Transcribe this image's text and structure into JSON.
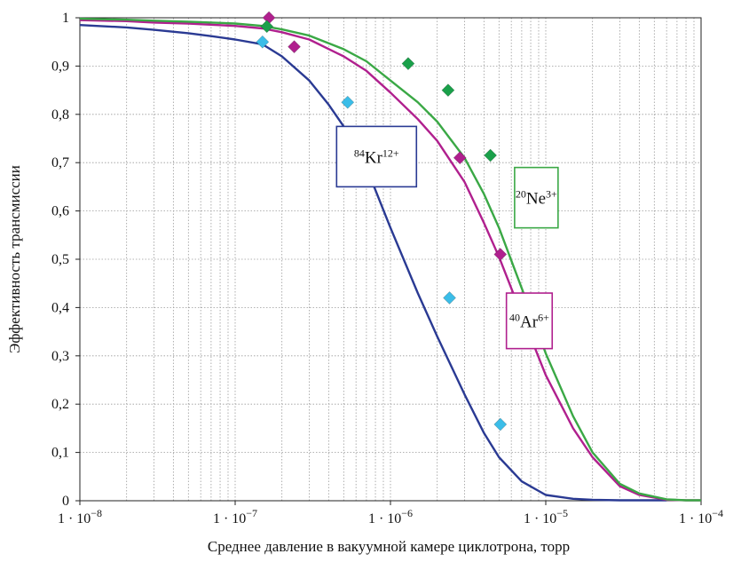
{
  "chart_data": {
    "type": "line",
    "xscale": "log",
    "xlim": [
      1e-08,
      0.0001
    ],
    "ylim": [
      0,
      1
    ],
    "grid": true,
    "xlabel": "Среднее давление в вакуумной камере циклотрона, торр",
    "ylabel": "Эффективность трансмиссии",
    "x_tick_labels": [
      {
        "value": 1e-08,
        "base": "1 · 10",
        "exp": "−8"
      },
      {
        "value": 1e-07,
        "base": "1 · 10",
        "exp": "−7"
      },
      {
        "value": 1e-06,
        "base": "1 · 10",
        "exp": "−6"
      },
      {
        "value": 1e-05,
        "base": "1 · 10",
        "exp": "−5"
      },
      {
        "value": 0.0001,
        "base": "1 · 10",
        "exp": "−4"
      }
    ],
    "y_ticks": [
      0,
      0.1,
      0.2,
      0.3,
      0.4,
      0.5,
      0.6,
      0.7,
      0.8,
      0.9,
      1
    ],
    "y_tick_labels": [
      "0",
      "0,1",
      "0,2",
      "0,3",
      "0,4",
      "0,5",
      "0,6",
      "0,7",
      "0,8",
      "0,9",
      "1"
    ],
    "series": [
      {
        "name_mass": "84",
        "name_elem": "Kr",
        "name_charge": "12+",
        "color": "#2a3a93",
        "marker_color": "#3bbde8",
        "curve_x": [
          1e-08,
          2e-08,
          3e-08,
          5e-08,
          7e-08,
          1e-07,
          1.5e-07,
          2e-07,
          3e-07,
          4e-07,
          5e-07,
          7e-07,
          1e-06,
          1.5e-06,
          2e-06,
          3e-06,
          4e-06,
          5e-06,
          7e-06,
          1e-05,
          1.5e-05,
          2e-05,
          3e-05,
          5e-05,
          6e-05
        ],
        "curve_y": [
          0.985,
          0.98,
          0.975,
          0.968,
          0.962,
          0.955,
          0.945,
          0.92,
          0.87,
          0.82,
          0.775,
          0.69,
          0.565,
          0.43,
          0.34,
          0.22,
          0.14,
          0.09,
          0.04,
          0.012,
          0.004,
          0.002,
          0.001,
          0.001,
          0.001
        ],
        "markers_x": [
          1.5e-07,
          5.3e-07,
          2.4e-06,
          5.1e-06
        ],
        "markers_y": [
          0.95,
          0.825,
          0.42,
          0.158
        ]
      },
      {
        "name_mass": "40",
        "name_elem": "Ar",
        "name_charge": "6+",
        "color": "#b0208e",
        "marker_color": "#b0208e",
        "curve_x": [
          1e-08,
          2e-08,
          3e-08,
          5e-08,
          1e-07,
          1.5e-07,
          2e-07,
          3e-07,
          5e-07,
          7e-07,
          1e-06,
          1.5e-06,
          2e-06,
          3e-06,
          4e-06,
          5e-06,
          7e-06,
          1e-05,
          1.5e-05,
          2e-05,
          3e-05,
          4e-05,
          6e-05,
          8e-05,
          0.0001
        ],
        "curve_y": [
          0.995,
          0.993,
          0.99,
          0.988,
          0.983,
          0.978,
          0.97,
          0.955,
          0.92,
          0.89,
          0.845,
          0.79,
          0.745,
          0.66,
          0.575,
          0.505,
          0.385,
          0.26,
          0.15,
          0.09,
          0.03,
          0.012,
          0.002,
          0.001,
          0.001
        ],
        "markers_x": [
          1.65e-07,
          2.4e-07,
          2.8e-06,
          5.1e-06
        ],
        "markers_y": [
          1.0,
          0.94,
          0.71,
          0.51
        ]
      },
      {
        "name_mass": "20",
        "name_elem": "Ne",
        "name_charge": "3+",
        "color": "#3aa845",
        "marker_color": "#1aa04a",
        "curve_x": [
          1e-08,
          2e-08,
          3e-08,
          5e-08,
          1e-07,
          1.5e-07,
          2e-07,
          3e-07,
          5e-07,
          7e-07,
          1e-06,
          1.5e-06,
          2e-06,
          3e-06,
          4e-06,
          5e-06,
          7e-06,
          1e-05,
          1.5e-05,
          2e-05,
          3e-05,
          4e-05,
          6e-05,
          8e-05,
          0.0001
        ],
        "curve_y": [
          0.998,
          0.996,
          0.994,
          0.992,
          0.988,
          0.983,
          0.976,
          0.963,
          0.935,
          0.91,
          0.87,
          0.825,
          0.785,
          0.71,
          0.635,
          0.565,
          0.44,
          0.305,
          0.175,
          0.1,
          0.035,
          0.015,
          0.003,
          0.001,
          0.001
        ],
        "markers_x": [
          1.6e-07,
          1.3e-06,
          2.35e-06,
          4.4e-06
        ],
        "markers_y": [
          0.982,
          0.905,
          0.85,
          0.715
        ]
      }
    ]
  }
}
